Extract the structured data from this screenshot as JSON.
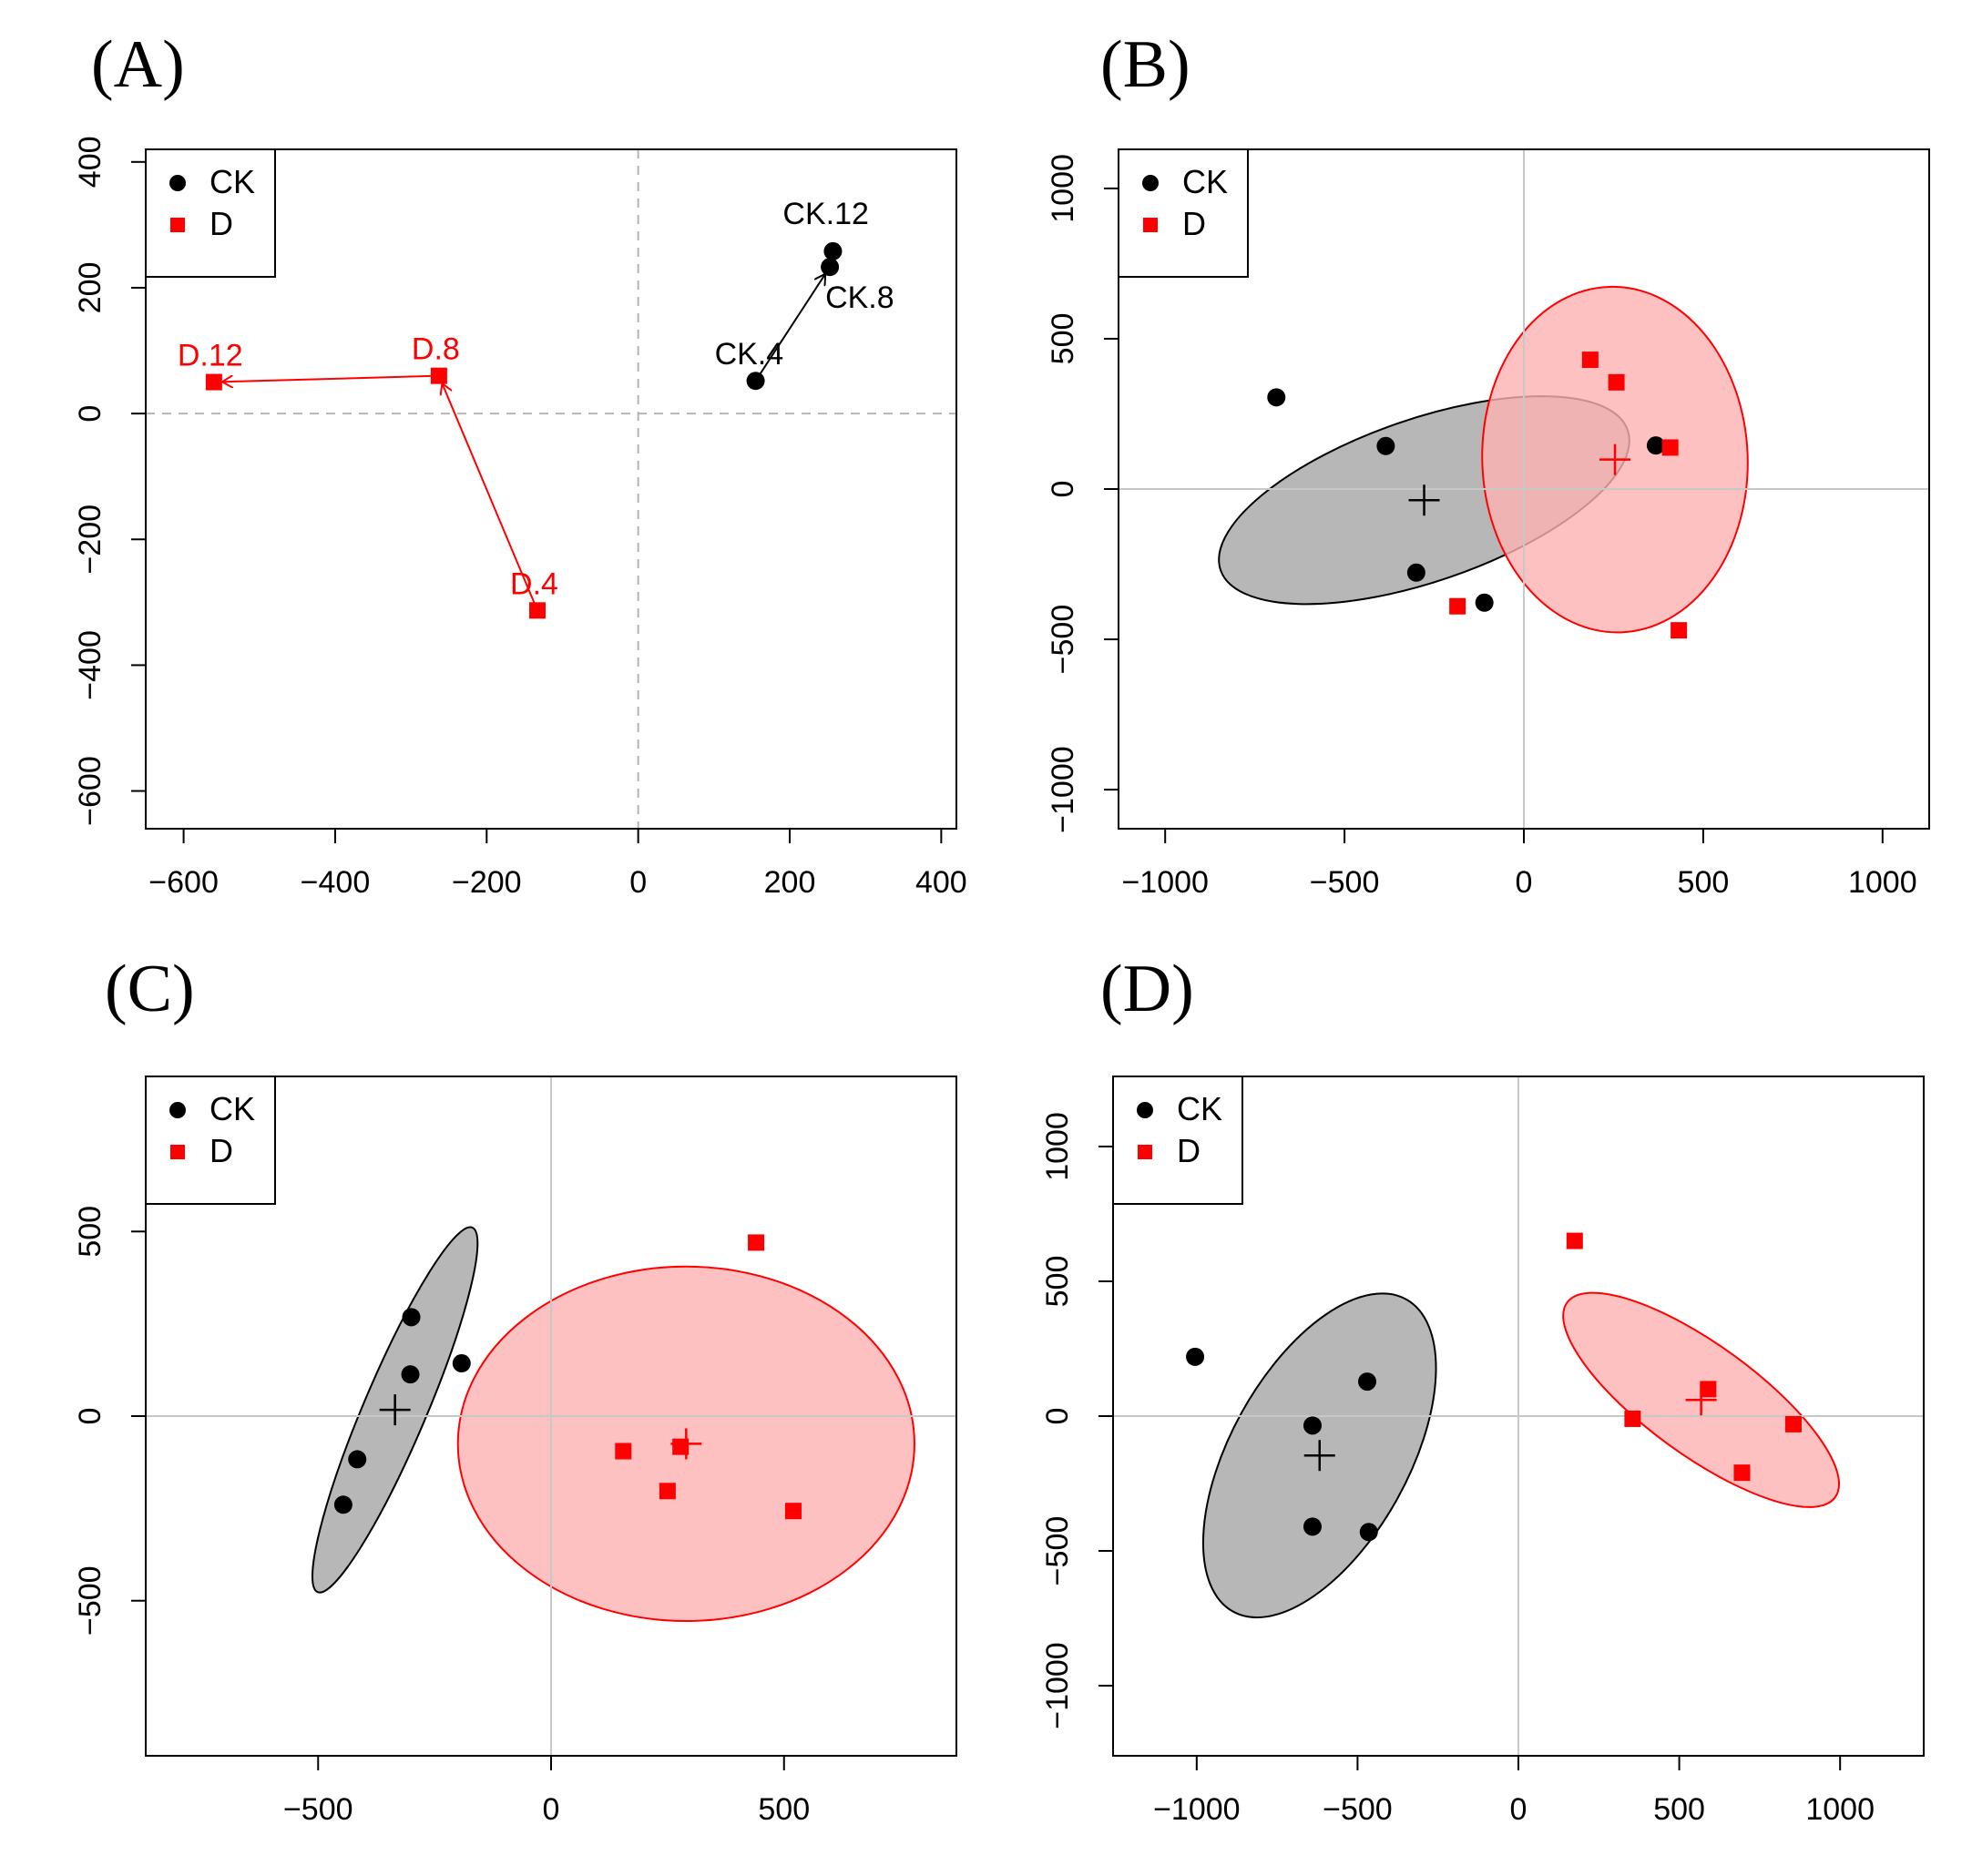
{
  "colors": {
    "ck": "#000000",
    "d": "#ff0000",
    "ck_fill": "#b3b3b3",
    "d_fill": "#fcb2b2",
    "refline": "#c8c8c8"
  },
  "legend": [
    {
      "label": "CK",
      "marker": "circle",
      "color": "#000000"
    },
    {
      "label": "D",
      "marker": "square",
      "color": "#ff0000"
    }
  ],
  "chart_data": [
    {
      "panel_label": "(A)",
      "type": "scatter",
      "xlim": [
        -650,
        420
      ],
      "ylim": [
        -660,
        420
      ],
      "xticks": [
        -600,
        -400,
        -200,
        0,
        200,
        400
      ],
      "yticks": [
        -600,
        -400,
        -200,
        0,
        200,
        400
      ],
      "reference_lines": "dashed",
      "legend_position": "top-left",
      "series": [
        {
          "name": "CK",
          "marker": "circle",
          "color": "#000000",
          "connected": true,
          "points": [
            {
              "label": "CK.4",
              "x": 155,
              "y": 52
            },
            {
              "label": "CK.8",
              "x": 253,
              "y": 233
            },
            {
              "label": "CK.12",
              "x": 257,
              "y": 258
            }
          ]
        },
        {
          "name": "D",
          "marker": "square",
          "color": "#ff0000",
          "connected": true,
          "points": [
            {
              "label": "D.4",
              "x": -133,
              "y": -313
            },
            {
              "label": "D.8",
              "x": -263,
              "y": 60
            },
            {
              "label": "D.12",
              "x": -560,
              "y": 50
            }
          ]
        }
      ]
    },
    {
      "panel_label": "(B)",
      "type": "scatter",
      "xlim": [
        -1130,
        1130
      ],
      "ylim": [
        -1130,
        1130
      ],
      "xticks": [
        -1000,
        -500,
        0,
        500,
        1000
      ],
      "yticks": [
        -1000,
        -500,
        0,
        500,
        1000
      ],
      "reference_lines": "solid",
      "legend_position": "top-left",
      "series": [
        {
          "name": "CK",
          "marker": "circle",
          "color": "#000000",
          "points": [
            {
              "x": -690,
              "y": 305
            },
            {
              "x": -385,
              "y": 143
            },
            {
              "x": -300,
              "y": -278
            },
            {
              "x": -110,
              "y": -378
            },
            {
              "x": 368,
              "y": 145
            }
          ],
          "centroid": {
            "x": -278,
            "y": -37
          },
          "ellipse": {
            "cx": -278,
            "cy": -37,
            "rx": 600,
            "ry": 270,
            "angle_deg": -19
          }
        },
        {
          "name": "D",
          "marker": "square",
          "color": "#ff0000",
          "points": [
            {
              "x": 185,
              "y": 430
            },
            {
              "x": 258,
              "y": 355
            },
            {
              "x": 408,
              "y": 138
            },
            {
              "x": 432,
              "y": -470
            },
            {
              "x": -185,
              "y": -390
            }
          ],
          "centroid": {
            "x": 254,
            "y": 98
          },
          "ellipse": {
            "cx": 254,
            "cy": 98,
            "rx": 370,
            "ry": 575,
            "angle_deg": -2
          }
        }
      ]
    },
    {
      "panel_label": "(C)",
      "type": "scatter",
      "xlim": [
        -870,
        870
      ],
      "ylim": [
        -920,
        920
      ],
      "xticks": [
        -500,
        0,
        500
      ],
      "yticks": [
        -500,
        0,
        500
      ],
      "reference_lines": "solid",
      "legend_position": "top-left",
      "series": [
        {
          "name": "CK",
          "marker": "circle",
          "color": "#000000",
          "points": [
            {
              "x": -300,
              "y": 268
            },
            {
              "x": -302,
              "y": 113
            },
            {
              "x": -192,
              "y": 143
            },
            {
              "x": -416,
              "y": -117
            },
            {
              "x": -446,
              "y": -240
            }
          ],
          "centroid": {
            "x": -335,
            "y": 17
          },
          "ellipse": {
            "cx": -335,
            "cy": 17,
            "rx": 425,
            "ry": 85,
            "angle_deg": -67
          }
        },
        {
          "name": "D",
          "marker": "square",
          "color": "#ff0000",
          "points": [
            {
              "x": 440,
              "y": 470
            },
            {
              "x": 155,
              "y": -95
            },
            {
              "x": 278,
              "y": -83
            },
            {
              "x": 250,
              "y": -203
            },
            {
              "x": 520,
              "y": -257
            }
          ],
          "centroid": {
            "x": 290,
            "y": -75
          },
          "ellipse": {
            "cx": 290,
            "cy": -75,
            "rx": 490,
            "ry": 480,
            "angle_deg": 0
          }
        }
      ]
    },
    {
      "panel_label": "(D)",
      "type": "scatter",
      "xlim": [
        -1260,
        1260
      ],
      "ylim": [
        -1260,
        1260
      ],
      "xticks": [
        -1000,
        -500,
        0,
        500,
        1000
      ],
      "yticks": [
        -1000,
        -500,
        0,
        500,
        1000
      ],
      "reference_lines": "solid",
      "legend_position": "top-left",
      "series": [
        {
          "name": "CK",
          "marker": "circle",
          "color": "#000000",
          "points": [
            {
              "x": -1005,
              "y": 220
            },
            {
              "x": -640,
              "y": -35
            },
            {
              "x": -470,
              "y": 128
            },
            {
              "x": -640,
              "y": -410
            },
            {
              "x": -465,
              "y": -430
            }
          ],
          "centroid": {
            "x": -618,
            "y": -146
          },
          "ellipse": {
            "cx": -618,
            "cy": -146,
            "rx": 555,
            "ry": 330,
            "angle_deg": -61
          }
        },
        {
          "name": "D",
          "marker": "square",
          "color": "#ff0000",
          "points": [
            {
              "x": 175,
              "y": 650
            },
            {
              "x": 355,
              "y": -10
            },
            {
              "x": 590,
              "y": 100
            },
            {
              "x": 695,
              "y": -210
            },
            {
              "x": 855,
              "y": -30
            }
          ],
          "centroid": {
            "x": 568,
            "y": 60
          },
          "ellipse": {
            "cx": 568,
            "cy": 60,
            "rx": 515,
            "ry": 205,
            "angle_deg": 36
          }
        }
      ]
    }
  ]
}
